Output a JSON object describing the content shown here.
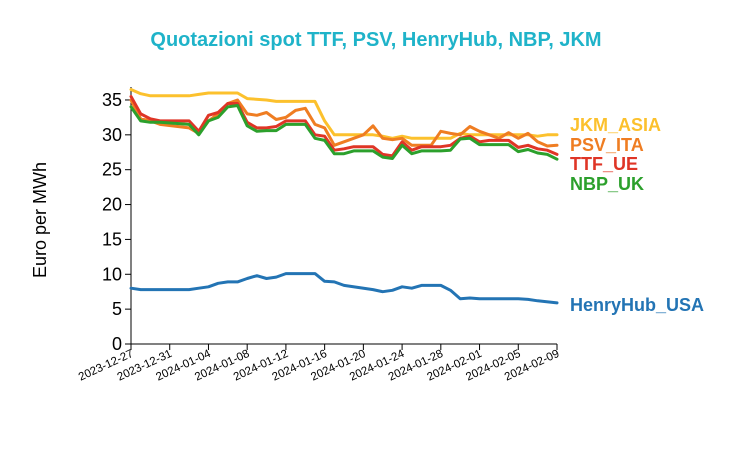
{
  "chart_data": {
    "type": "line",
    "title": "Quotazioni spot TTF, PSV, HenryHub, NBP, JKM",
    "title_color": "#1fb3c9",
    "ylabel": "Euro per MWh",
    "xlabel": "",
    "ylim": [
      0,
      36
    ],
    "yticks": [
      0,
      5,
      10,
      15,
      20,
      25,
      30,
      35
    ],
    "xlim": [
      "2023-12-27",
      "2024-02-09"
    ],
    "xticks": [
      "2023-12-27",
      "2023-12-31",
      "2024-01-04",
      "2024-01-08",
      "2024-01-12",
      "2024-01-16",
      "2024-01-20",
      "2024-01-24",
      "2024-01-28",
      "2024-02-01",
      "2024-02-05",
      "2024-02-09"
    ],
    "grid": false,
    "legend": "inline labels at right end",
    "series": [
      {
        "name": "JKM_ASIA",
        "color": "#fcc12d",
        "x": [
          "2023-12-27",
          "2023-12-28",
          "2023-12-29",
          "2023-12-30",
          "2024-01-02",
          "2024-01-03",
          "2024-01-04",
          "2024-01-06",
          "2024-01-07",
          "2024-01-08",
          "2024-01-10",
          "2024-01-11",
          "2024-01-12",
          "2024-01-15",
          "2024-01-16",
          "2024-01-17",
          "2024-01-18",
          "2024-01-21",
          "2024-01-22",
          "2024-01-23",
          "2024-01-24",
          "2024-01-25",
          "2024-01-26",
          "2024-01-29",
          "2024-01-30",
          "2024-01-31",
          "2024-02-01",
          "2024-02-04",
          "2024-02-05",
          "2024-02-06",
          "2024-02-07",
          "2024-02-08",
          "2024-02-09"
        ],
        "y": [
          36.5,
          35.9,
          35.6,
          35.6,
          35.6,
          35.8,
          36.0,
          36.0,
          36.0,
          35.2,
          35.0,
          34.8,
          34.8,
          34.8,
          32.0,
          30.0,
          30.0,
          30.0,
          29.8,
          29.5,
          29.8,
          29.5,
          29.5,
          29.5,
          30.2,
          30.0,
          30.0,
          30.0,
          30.0,
          30.0,
          29.8,
          30.0,
          30.0
        ]
      },
      {
        "name": "PSV_ITA",
        "color": "#ef7d22",
        "x": [
          "2023-12-27",
          "2023-12-28",
          "2023-12-29",
          "2023-12-30",
          "2024-01-02",
          "2024-01-03",
          "2024-01-04",
          "2024-01-05",
          "2024-01-06",
          "2024-01-07",
          "2024-01-08",
          "2024-01-09",
          "2024-01-10",
          "2024-01-11",
          "2024-01-12",
          "2024-01-13",
          "2024-01-14",
          "2024-01-15",
          "2024-01-16",
          "2024-01-17",
          "2024-01-18",
          "2024-01-19",
          "2024-01-20",
          "2024-01-21",
          "2024-01-22",
          "2024-01-23",
          "2024-01-24",
          "2024-01-25",
          "2024-01-26",
          "2024-01-27",
          "2024-01-28",
          "2024-01-29",
          "2024-01-30",
          "2024-01-31",
          "2024-02-01",
          "2024-02-02",
          "2024-02-03",
          "2024-02-04",
          "2024-02-05",
          "2024-02-06",
          "2024-02-07",
          "2024-02-08",
          "2024-02-09"
        ],
        "y": [
          35.0,
          32.3,
          32.0,
          31.5,
          31.0,
          30.2,
          32.0,
          33.0,
          34.5,
          35.0,
          33.0,
          32.8,
          33.2,
          32.2,
          32.5,
          33.5,
          33.8,
          31.5,
          31.0,
          28.5,
          29.0,
          29.5,
          30.0,
          31.3,
          29.5,
          29.3,
          29.5,
          28.5,
          28.5,
          28.5,
          30.5,
          30.2,
          30.0,
          31.2,
          30.5,
          30.0,
          29.5,
          30.3,
          29.5,
          30.2,
          29.0,
          28.4,
          28.5
        ]
      },
      {
        "name": "TTF_UE",
        "color": "#df3526",
        "x": [
          "2023-12-27",
          "2023-12-28",
          "2023-12-29",
          "2023-12-30",
          "2024-01-02",
          "2024-01-03",
          "2024-01-04",
          "2024-01-05",
          "2024-01-06",
          "2024-01-07",
          "2024-01-08",
          "2024-01-09",
          "2024-01-10",
          "2024-01-11",
          "2024-01-12",
          "2024-01-13",
          "2024-01-14",
          "2024-01-15",
          "2024-01-16",
          "2024-01-17",
          "2024-01-18",
          "2024-01-19",
          "2024-01-20",
          "2024-01-21",
          "2024-01-22",
          "2024-01-23",
          "2024-01-24",
          "2024-01-25",
          "2024-01-26",
          "2024-01-27",
          "2024-01-28",
          "2024-01-29",
          "2024-01-30",
          "2024-01-31",
          "2024-02-01",
          "2024-02-02",
          "2024-02-03",
          "2024-02-04",
          "2024-02-05",
          "2024-02-06",
          "2024-02-07",
          "2024-02-08",
          "2024-02-09"
        ],
        "y": [
          35.5,
          33.0,
          32.3,
          32.0,
          32.0,
          30.5,
          32.8,
          33.2,
          34.5,
          34.5,
          31.8,
          31.0,
          31.0,
          31.2,
          32.0,
          32.0,
          32.0,
          30.0,
          29.8,
          27.8,
          28.0,
          28.3,
          28.3,
          28.3,
          27.2,
          27.0,
          29.0,
          27.8,
          28.3,
          28.3,
          28.3,
          28.5,
          29.5,
          29.8,
          29.0,
          29.2,
          29.2,
          29.2,
          28.2,
          28.5,
          28.0,
          27.8,
          27.2
        ]
      },
      {
        "name": "NBP_UK",
        "color": "#2ca02c",
        "x": [
          "2023-12-27",
          "2023-12-28",
          "2023-12-29",
          "2023-12-30",
          "2024-01-02",
          "2024-01-03",
          "2024-01-04",
          "2024-01-05",
          "2024-01-06",
          "2024-01-07",
          "2024-01-08",
          "2024-01-09",
          "2024-01-10",
          "2024-01-11",
          "2024-01-12",
          "2024-01-13",
          "2024-01-14",
          "2024-01-15",
          "2024-01-16",
          "2024-01-17",
          "2024-01-18",
          "2024-01-19",
          "2024-01-20",
          "2024-01-21",
          "2024-01-22",
          "2024-01-23",
          "2024-01-24",
          "2024-01-25",
          "2024-01-26",
          "2024-01-27",
          "2024-01-28",
          "2024-01-29",
          "2024-01-30",
          "2024-01-31",
          "2024-02-01",
          "2024-02-02",
          "2024-02-03",
          "2024-02-04",
          "2024-02-05",
          "2024-02-06",
          "2024-02-07",
          "2024-02-08",
          "2024-02-09"
        ],
        "y": [
          34.0,
          32.0,
          31.8,
          31.8,
          31.5,
          30.0,
          32.0,
          32.5,
          34.0,
          34.2,
          31.3,
          30.5,
          30.6,
          30.6,
          31.5,
          31.5,
          31.5,
          29.5,
          29.2,
          27.3,
          27.3,
          27.7,
          27.7,
          27.7,
          26.8,
          26.6,
          28.5,
          27.3,
          27.7,
          27.7,
          27.7,
          27.8,
          29.4,
          29.5,
          28.6,
          28.6,
          28.6,
          28.6,
          27.6,
          27.9,
          27.4,
          27.2,
          26.5
        ]
      },
      {
        "name": "HenryHub_USA",
        "color": "#2374b4",
        "x": [
          "2023-12-27",
          "2023-12-28",
          "2023-12-29",
          "2023-12-30",
          "2024-01-02",
          "2024-01-03",
          "2024-01-04",
          "2024-01-05",
          "2024-01-06",
          "2024-01-07",
          "2024-01-08",
          "2024-01-09",
          "2024-01-10",
          "2024-01-11",
          "2024-01-12",
          "2024-01-15",
          "2024-01-16",
          "2024-01-17",
          "2024-01-18",
          "2024-01-21",
          "2024-01-22",
          "2024-01-23",
          "2024-01-24",
          "2024-01-25",
          "2024-01-26",
          "2024-01-28",
          "2024-01-29",
          "2024-01-30",
          "2024-01-31",
          "2024-02-01",
          "2024-02-04",
          "2024-02-05",
          "2024-02-06",
          "2024-02-07",
          "2024-02-09"
        ],
        "y": [
          8.0,
          7.8,
          7.8,
          7.8,
          7.8,
          8.0,
          8.2,
          8.7,
          8.9,
          8.9,
          9.4,
          9.8,
          9.4,
          9.6,
          10.1,
          10.1,
          9.0,
          8.9,
          8.4,
          7.8,
          7.5,
          7.7,
          8.2,
          8.0,
          8.4,
          8.4,
          7.7,
          6.5,
          6.6,
          6.5,
          6.5,
          6.5,
          6.4,
          6.2,
          5.9
        ]
      }
    ]
  }
}
